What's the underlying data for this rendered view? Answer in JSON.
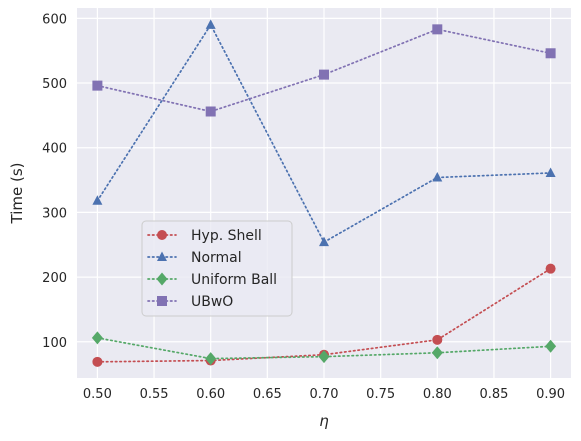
{
  "chart_data": {
    "type": "line",
    "title": "",
    "xlabel": "η",
    "ylabel": "Time (s)",
    "xlim": [
      0.482,
      0.918
    ],
    "ylim": [
      44,
      616
    ],
    "xticks": [
      0.5,
      0.55,
      0.6,
      0.65,
      0.7,
      0.75,
      0.8,
      0.85,
      0.9
    ],
    "xtick_labels": [
      "0.50",
      "0.55",
      "0.60",
      "0.65",
      "0.70",
      "0.75",
      "0.80",
      "0.85",
      "0.90"
    ],
    "yticks": [
      100,
      200,
      300,
      400,
      500,
      600
    ],
    "ytick_labels": [
      "100",
      "200",
      "300",
      "400",
      "500",
      "600"
    ],
    "grid": true,
    "legend_position": "lower-left inside",
    "x": [
      0.5,
      0.6,
      0.7,
      0.8,
      0.9
    ],
    "series": [
      {
        "name": "Hyp. Shell",
        "color": "#c44e52",
        "marker": "circle",
        "linestyle": "dotted",
        "values": [
          69,
          71,
          80,
          103,
          213
        ]
      },
      {
        "name": "Normal",
        "color": "#4c72b0",
        "marker": "triangle",
        "linestyle": "dotted",
        "values": [
          318,
          590,
          254,
          354,
          361
        ]
      },
      {
        "name": "Uniform Ball",
        "color": "#55a868",
        "marker": "diamond",
        "linestyle": "dotted",
        "values": [
          106,
          74,
          77,
          83,
          93
        ]
      },
      {
        "name": "UBwO",
        "color": "#8172b3",
        "marker": "square",
        "linestyle": "dotted",
        "values": [
          496,
          456,
          513,
          583,
          546
        ]
      }
    ]
  }
}
